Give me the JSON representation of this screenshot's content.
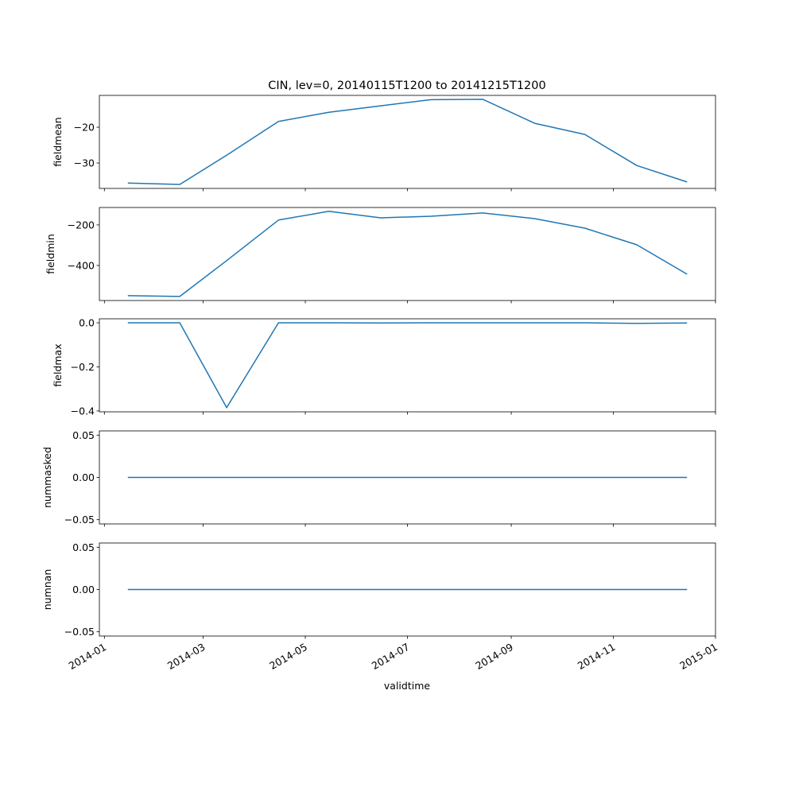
{
  "chart_data": {
    "type": "line",
    "title": "CIN, lev=0, 20140115T1200 to 20141215T1200",
    "xlabel": "validtime",
    "x": [
      "2014-01-15",
      "2014-02-15",
      "2014-03-15",
      "2014-04-15",
      "2014-05-15",
      "2014-06-15",
      "2014-07-15",
      "2014-08-15",
      "2014-09-15",
      "2014-10-15",
      "2014-11-15",
      "2014-12-15"
    ],
    "xlim": [
      "2013-12-29",
      "2015-01-01"
    ],
    "xticks": [
      "2014-01-01",
      "2014-03-01",
      "2014-05-01",
      "2014-07-01",
      "2014-09-01",
      "2014-11-01",
      "2015-01-01"
    ],
    "xtick_labels": [
      "2014-01",
      "2014-03",
      "2014-05",
      "2014-07",
      "2014-09",
      "2014-11",
      "2015-01"
    ],
    "line_color": "#1f77b4",
    "grid": false,
    "subplots": [
      {
        "ylabel": "fieldmean",
        "ylim": [
          -37.1,
          -11.1
        ],
        "yticks": [
          -30,
          -20
        ],
        "ytick_labels": [
          "−30",
          "−20"
        ],
        "values": [
          -35.6,
          -36.0,
          -27.8,
          -18.4,
          -15.8,
          -14.0,
          -12.3,
          -12.2,
          -18.9,
          -22.0,
          -30.7,
          -35.3
        ]
      },
      {
        "ylabel": "fieldmin",
        "ylim": [
          -573,
          -114
        ],
        "yticks": [
          -400,
          -200
        ],
        "ytick_labels": [
          "−400",
          "−200"
        ],
        "values": [
          -549,
          -553,
          -376,
          -176,
          -133,
          -165,
          -157,
          -141,
          -169,
          -216,
          -298,
          -443
        ]
      },
      {
        "ylabel": "fieldmax",
        "ylim": [
          -0.404,
          0.018
        ],
        "yticks": [
          -0.4,
          -0.2,
          0.0
        ],
        "ytick_labels": [
          "−0.4",
          "−0.2",
          "0.0"
        ],
        "values": [
          0.0,
          0.0,
          -0.385,
          0.0,
          0.0,
          -0.001,
          0.0,
          0.0,
          0.0,
          0.0,
          -0.003,
          -0.001
        ]
      },
      {
        "ylabel": "nummasked",
        "ylim": [
          -0.055,
          0.055
        ],
        "yticks": [
          -0.05,
          0.0,
          0.05
        ],
        "ytick_labels": [
          "−0.05",
          "0.00",
          "0.05"
        ],
        "values": [
          0,
          0,
          0,
          0,
          0,
          0,
          0,
          0,
          0,
          0,
          0,
          0
        ]
      },
      {
        "ylabel": "numnan",
        "ylim": [
          -0.055,
          0.055
        ],
        "yticks": [
          -0.05,
          0.0,
          0.05
        ],
        "ytick_labels": [
          "−0.05",
          "0.00",
          "0.05"
        ],
        "values": [
          0,
          0,
          0,
          0,
          0,
          0,
          0,
          0,
          0,
          0,
          0,
          0
        ]
      }
    ]
  }
}
